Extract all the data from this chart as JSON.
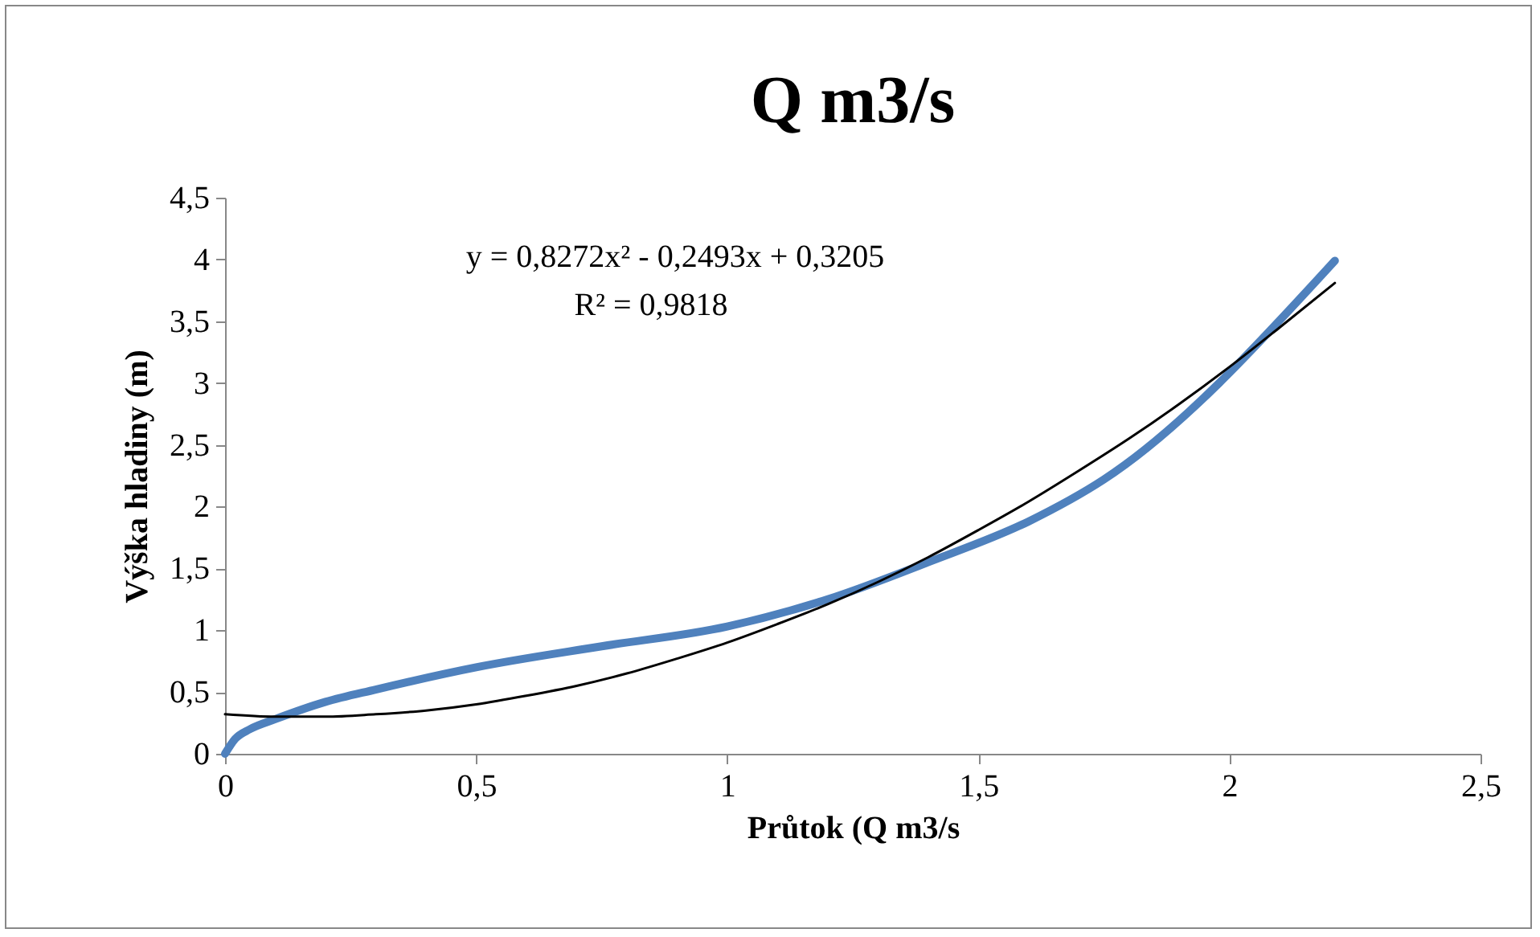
{
  "chart_data": {
    "type": "line",
    "title": "Q m3/s",
    "xlabel": "Průtok (Q m3/s",
    "ylabel": "Výška hladiny (m)",
    "annotations": [
      "y = 0,8272x² - 0,2493x + 0,3205",
      "R² = 0,9818"
    ],
    "xlim": [
      0,
      2.5
    ],
    "ylim": [
      0,
      4.5
    ],
    "xticks": [
      0,
      {
        "value": 0.5,
        "label": "0,5"
      },
      1,
      {
        "value": 1.5,
        "label": "1,5"
      },
      2,
      {
        "value": 2.5,
        "label": "2,5"
      }
    ],
    "yticks": [
      0,
      {
        "value": 0.5,
        "label": "0,5"
      },
      1,
      {
        "value": 1.5,
        "label": "1,5"
      },
      2,
      {
        "value": 2.5,
        "label": "2,5"
      },
      3,
      {
        "value": 3.5,
        "label": "3,5"
      },
      4,
      {
        "value": 4.5,
        "label": "4,5"
      }
    ],
    "grid": false,
    "series": [
      {
        "type": "line",
        "color": "#4f81bd",
        "x": [
          0,
          0.02,
          0.05,
          0.1,
          0.2,
          0.3,
          0.5,
          0.75,
          1,
          1.2,
          1.4,
          1.6,
          1.75,
          2.21
        ],
        "values": [
          0,
          0.12,
          0.2,
          0.28,
          0.42,
          0.52,
          0.7,
          0.87,
          1.03,
          1.25,
          1.55,
          1.88,
          2.22,
          3.99
        ]
      },
      {
        "type": "line",
        "color": "#000000",
        "x": [
          0,
          0.1,
          0.2,
          0.3,
          0.4,
          0.5,
          0.6,
          0.7,
          0.8,
          0.9,
          1,
          1.1,
          1.2,
          1.3,
          1.4,
          1.5,
          1.6,
          1.7,
          1.8,
          1.9,
          2,
          2.1,
          2.21
        ],
        "values": [
          0.32,
          0.3,
          0.3,
          0.32,
          0.35,
          0.4,
          0.47,
          0.55,
          0.65,
          0.77,
          0.9,
          1.05,
          1.21,
          1.39,
          1.59,
          1.81,
          2.04,
          2.29,
          2.55,
          2.83,
          3.13,
          3.45,
          3.81
        ]
      }
    ]
  }
}
